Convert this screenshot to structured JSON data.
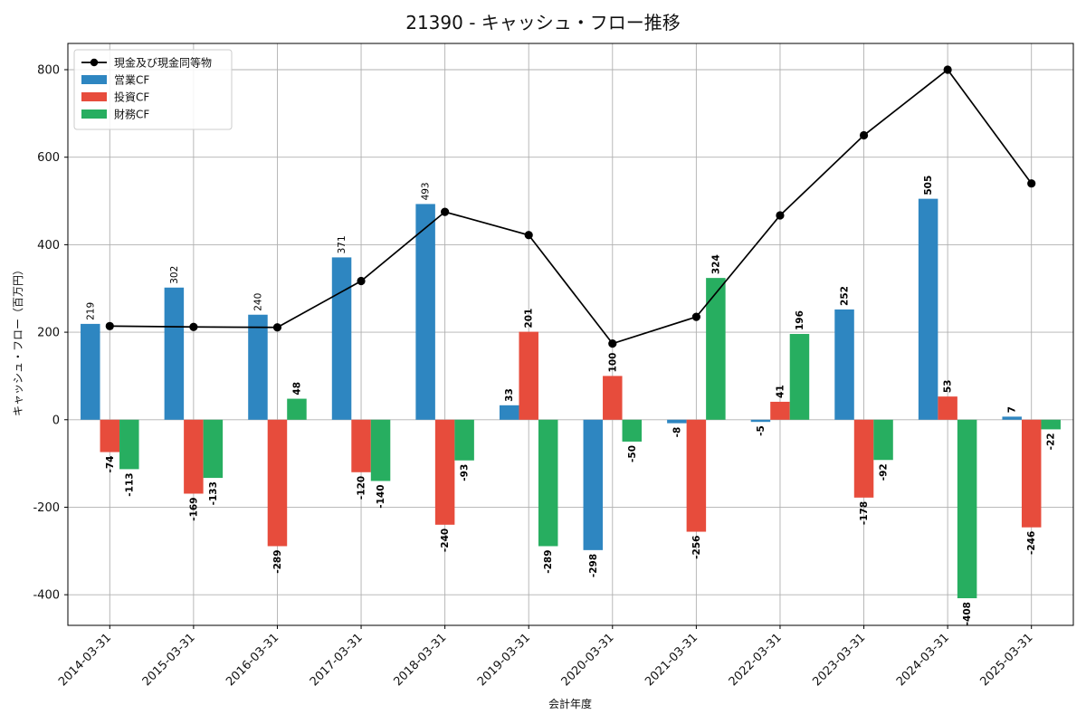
{
  "chart_data": {
    "type": "bar",
    "title": "21390 - キャッシュ・フロー推移",
    "xlabel": "会計年度",
    "ylabel": "キャッシュ・フロー（百万円）",
    "ylim": [
      -470,
      860
    ],
    "yticks": [
      -400,
      -200,
      0,
      200,
      400,
      600,
      800
    ],
    "grid": true,
    "legend_position": "top-left",
    "categories": [
      "2014-03-31",
      "2015-03-31",
      "2016-03-31",
      "2017-03-31",
      "2018-03-31",
      "2019-03-31",
      "2020-03-31",
      "2021-03-31",
      "2022-03-31",
      "2023-03-31",
      "2024-03-31",
      "2025-03-31"
    ],
    "series": [
      {
        "name": "営業CF",
        "type": "bar",
        "color": "#2e86c1",
        "values": [
          219,
          302,
          240,
          371,
          493,
          33,
          -298,
          -8,
          -5,
          252,
          505,
          7
        ]
      },
      {
        "name": "投資CF",
        "type": "bar",
        "color": "#e74c3c",
        "values": [
          -74,
          -169,
          -289,
          -120,
          -240,
          201,
          100,
          -256,
          41,
          -178,
          53,
          -246
        ]
      },
      {
        "name": "財務CF",
        "type": "bar",
        "color": "#27ae60",
        "values": [
          -113,
          -133,
          48,
          -140,
          -93,
          -289,
          -50,
          324,
          196,
          -92,
          -408,
          -22
        ]
      },
      {
        "name": "現金及び現金同等物",
        "type": "line",
        "color": "#000000",
        "values": [
          214,
          212,
          211,
          317,
          475,
          422,
          174,
          235,
          467,
          650,
          800,
          540
        ]
      }
    ]
  }
}
